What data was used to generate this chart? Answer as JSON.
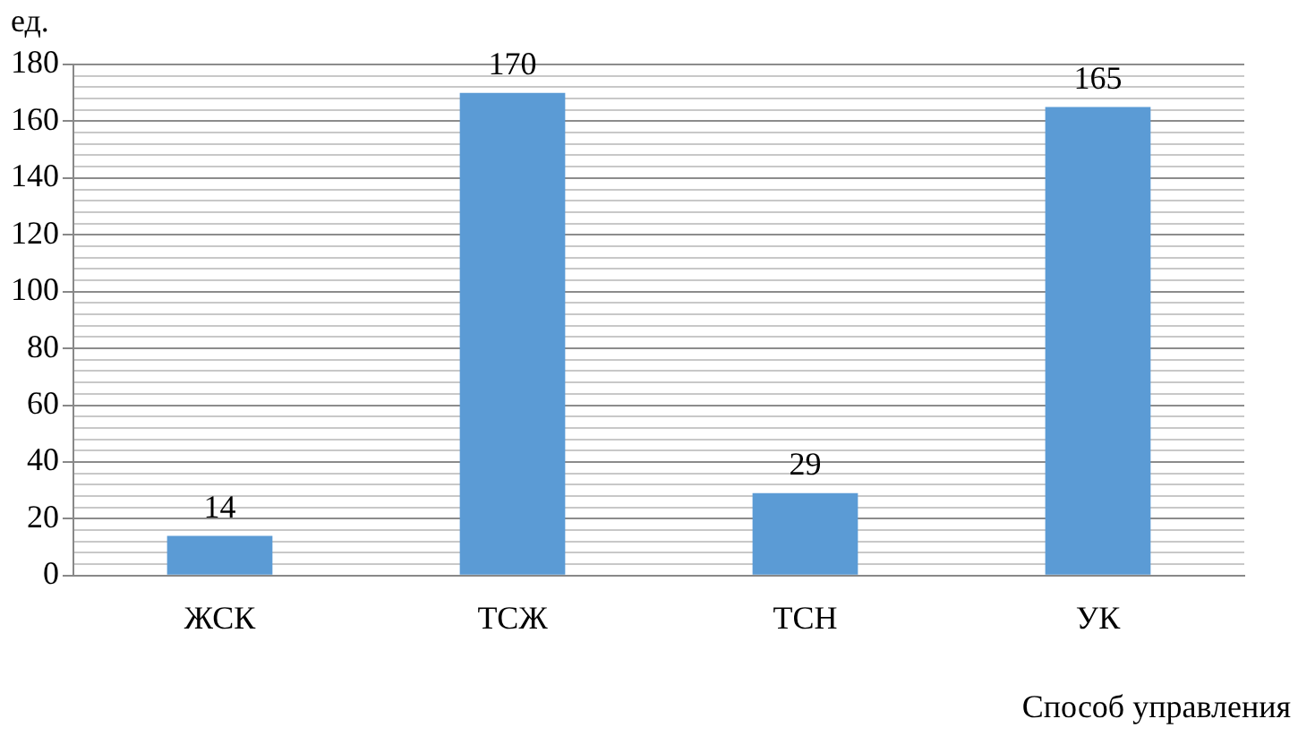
{
  "chart_data": {
    "type": "bar",
    "ylabel": "ед.",
    "xlabel": "Способ управления",
    "categories": [
      "ЖСК",
      "ТСЖ",
      "ТСН",
      "УК"
    ],
    "values": [
      14,
      170,
      29,
      165
    ],
    "color": "#5b9bd5",
    "data_labels": true,
    "grid": "y",
    "legend": false,
    "ylim": [
      0,
      180
    ],
    "yticks": [
      0,
      {
        "value": 4,
        "label": null
      },
      {
        "value": 8,
        "label": null
      },
      {
        "value": 12,
        "label": null
      },
      {
        "value": 16,
        "label": null
      },
      20,
      {
        "value": 24,
        "label": null
      },
      {
        "value": 28,
        "label": null
      },
      {
        "value": 32,
        "label": null
      },
      {
        "value": 36,
        "label": null
      },
      40,
      {
        "value": 44,
        "label": null
      },
      {
        "value": 48,
        "label": null
      },
      {
        "value": 52,
        "label": null
      },
      {
        "value": 56,
        "label": null
      },
      60,
      {
        "value": 64,
        "label": null
      },
      {
        "value": 68,
        "label": null
      },
      {
        "value": 72,
        "label": null
      },
      {
        "value": 76,
        "label": null
      },
      80,
      {
        "value": 84,
        "label": null
      },
      {
        "value": 88,
        "label": null
      },
      {
        "value": 92,
        "label": null
      },
      {
        "value": 96,
        "label": null
      },
      100,
      {
        "value": 104,
        "label": null
      },
      {
        "value": 108,
        "label": null
      },
      {
        "value": 112,
        "label": null
      },
      {
        "value": 116,
        "label": null
      },
      120,
      {
        "value": 124,
        "label": null
      },
      {
        "value": 128,
        "label": null
      },
      {
        "value": 132,
        "label": null
      },
      {
        "value": 136,
        "label": null
      },
      140,
      {
        "value": 144,
        "label": null
      },
      {
        "value": 148,
        "label": null
      },
      {
        "value": 152,
        "label": null
      },
      {
        "value": 156,
        "label": null
      },
      160,
      {
        "value": 164,
        "label": null
      },
      {
        "value": 168,
        "label": null
      },
      {
        "value": 172,
        "label": null
      },
      {
        "value": 176,
        "label": null
      },
      180
    ]
  }
}
